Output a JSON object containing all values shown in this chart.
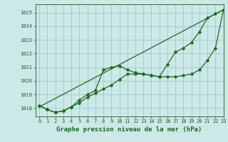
{
  "title": "Graphe pression niveau de la mer (hPa)",
  "background_color": "#cce8e8",
  "grid_color": "#99cccc",
  "line_color": "#1a6b1a",
  "xlim": [
    -0.5,
    23
  ],
  "ylim": [
    1017.4,
    1025.6
  ],
  "yticks": [
    1018,
    1019,
    1020,
    1021,
    1022,
    1023,
    1024,
    1025
  ],
  "xticks": [
    0,
    1,
    2,
    3,
    4,
    5,
    6,
    7,
    8,
    9,
    10,
    11,
    12,
    13,
    14,
    15,
    16,
    17,
    18,
    19,
    20,
    21,
    22,
    23
  ],
  "series1_x": [
    0,
    1,
    2,
    3,
    4,
    5,
    6,
    7,
    8,
    9,
    10,
    11,
    12,
    13,
    14,
    15,
    16,
    17,
    18,
    19,
    20,
    21,
    22,
    23
  ],
  "series1_y": [
    1018.2,
    1017.9,
    1017.7,
    1017.8,
    1018.1,
    1018.6,
    1019.0,
    1019.3,
    1020.8,
    1021.0,
    1021.1,
    1020.8,
    1020.6,
    1020.5,
    1020.4,
    1020.3,
    1021.2,
    1022.1,
    1022.4,
    1022.8,
    1023.6,
    1024.6,
    1024.9,
    1025.2
  ],
  "series2_x": [
    0,
    1,
    2,
    3,
    4,
    5,
    6,
    7,
    8,
    9,
    10,
    11,
    12,
    13,
    14,
    15,
    16,
    17,
    18,
    19,
    20,
    21,
    22,
    23
  ],
  "series2_y": [
    1018.2,
    1017.9,
    1017.7,
    1017.8,
    1018.1,
    1018.4,
    1018.8,
    1019.1,
    1019.4,
    1019.7,
    1020.1,
    1020.5,
    1020.5,
    1020.5,
    1020.4,
    1020.3,
    1020.3,
    1020.3,
    1020.4,
    1020.5,
    1020.8,
    1021.5,
    1022.4,
    1025.2
  ],
  "trend_x": [
    0,
    23
  ],
  "trend_y": [
    1018.1,
    1025.2
  ],
  "markersize": 2.5,
  "linewidth": 0.9,
  "title_fontsize": 6.5,
  "tick_fontsize": 5.0,
  "title_color": "#1a6b1a",
  "tick_color": "#1a5c1a"
}
